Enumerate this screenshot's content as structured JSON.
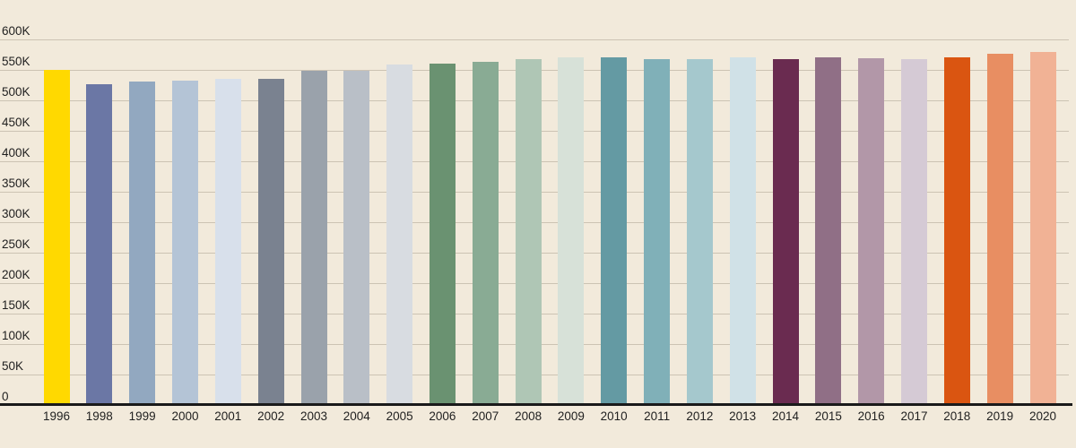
{
  "chart_data": {
    "type": "bar",
    "title": "",
    "xlabel": "",
    "ylabel": "",
    "unit": "K (thousands)",
    "grid": true,
    "legend": "none",
    "ylim": [
      0,
      600
    ],
    "ytick_step": 50,
    "ytick_labels": [
      "0",
      "50K",
      "100K",
      "150K",
      "200K",
      "250K",
      "300K",
      "350K",
      "400K",
      "450K",
      "500K",
      "550K",
      "600K"
    ],
    "categories": [
      "1996",
      "1998",
      "1999",
      "2000",
      "2001",
      "2002",
      "2003",
      "2004",
      "2005",
      "2006",
      "2007",
      "2008",
      "2009",
      "2010",
      "2011",
      "2012",
      "2013",
      "2014",
      "2015",
      "2016",
      "2017",
      "2018",
      "2019",
      "2020"
    ],
    "values": [
      550,
      527,
      531,
      533,
      535,
      536,
      548,
      549,
      559,
      561,
      563,
      568,
      571,
      570,
      568,
      568,
      570,
      568,
      570,
      569,
      568,
      571,
      576,
      579
    ],
    "bar_colors": [
      "#FFD900",
      "#6B77A5",
      "#92A8C0",
      "#B4C4D6",
      "#D8E0EB",
      "#7A8290",
      "#9AA2AB",
      "#B9BFC7",
      "#D8DCE1",
      "#6A9271",
      "#89AB94",
      "#AFC6B5",
      "#D7E1D8",
      "#649AA3",
      "#80B0B8",
      "#A5C8CD",
      "#D0E1E7",
      "#6A2B50",
      "#906F86",
      "#B297A8",
      "#D5CAD5",
      "#DA5511",
      "#E88E62",
      "#F1B295"
    ]
  },
  "colors": {
    "background": "#F2EADB",
    "gridline": "#CCC3B3",
    "axis_line": "#1A1A1A",
    "text": "#1F1F1F"
  }
}
